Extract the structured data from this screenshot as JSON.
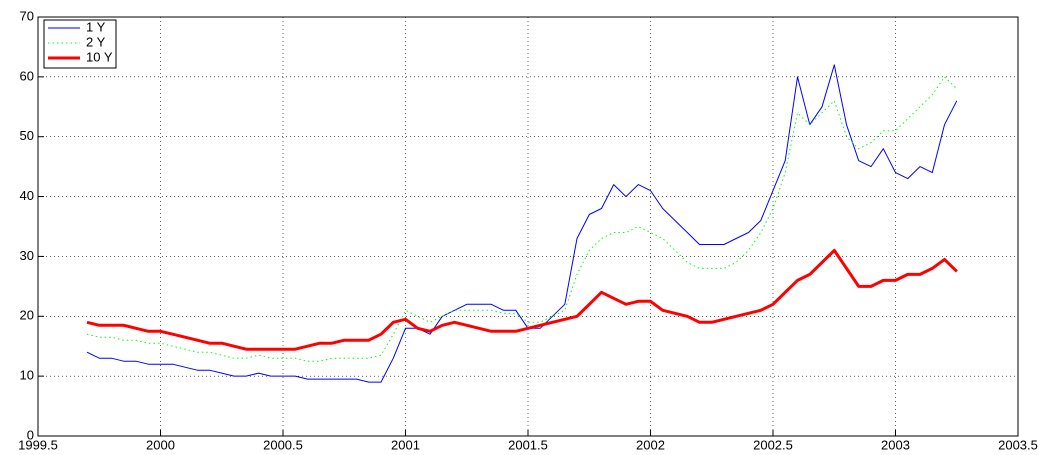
{
  "chart_data": {
    "type": "line",
    "x": [
      1999.7,
      1999.75,
      1999.8,
      1999.85,
      1999.9,
      1999.95,
      2000,
      2000.05,
      2000.1,
      2000.15,
      2000.2,
      2000.25,
      2000.3,
      2000.35,
      2000.4,
      2000.45,
      2000.5,
      2000.55,
      2000.6,
      2000.65,
      2000.7,
      2000.75,
      2000.8,
      2000.85,
      2000.9,
      2000.95,
      2001,
      2001.05,
      2001.1,
      2001.15,
      2001.2,
      2001.25,
      2001.3,
      2001.35,
      2001.4,
      2001.45,
      2001.5,
      2001.55,
      2001.6,
      2001.65,
      2001.7,
      2001.75,
      2001.8,
      2001.85,
      2001.9,
      2001.95,
      2002,
      2002.05,
      2002.1,
      2002.15,
      2002.2,
      2002.25,
      2002.3,
      2002.35,
      2002.4,
      2002.45,
      2002.5,
      2002.55,
      2002.6,
      2002.65,
      2002.7,
      2002.75,
      2002.8,
      2002.85,
      2002.9,
      2002.95,
      2003,
      2003.05,
      2003.1,
      2003.15,
      2003.2,
      2003.25
    ],
    "series": [
      {
        "name": "1 Y",
        "color": "#0000ff",
        "linestyle": "solid",
        "linewidth": 1,
        "values": [
          14,
          13,
          13,
          12.5,
          12.5,
          12,
          12,
          12,
          11.5,
          11,
          11,
          10.5,
          10,
          10,
          10.5,
          10,
          10,
          10,
          9.5,
          9.5,
          9.5,
          9.5,
          9.5,
          9,
          9,
          13,
          18,
          18,
          17,
          20,
          21,
          22,
          22,
          22,
          21,
          21,
          18,
          18,
          20,
          22,
          33,
          37,
          38,
          42,
          40,
          42,
          41,
          38,
          36,
          34,
          32,
          32,
          32,
          33,
          34,
          36,
          41,
          46,
          60,
          52,
          55,
          62,
          52,
          46,
          45,
          48,
          44,
          43,
          45,
          44,
          52,
          56
        ]
      },
      {
        "name": "2 Y",
        "color": "#00ff00",
        "linestyle": "dotted",
        "linewidth": 1,
        "values": [
          17,
          16.5,
          16.5,
          16,
          16,
          15.5,
          15.5,
          15,
          14.5,
          14,
          14,
          13.5,
          13,
          13,
          13.5,
          13,
          13,
          13,
          12.5,
          12.5,
          13,
          13,
          13,
          13,
          13.5,
          17,
          21,
          20,
          19,
          20,
          21,
          21,
          21,
          21,
          20.5,
          20.5,
          19,
          19,
          20,
          21,
          27,
          31,
          33,
          34,
          34,
          35,
          34,
          33,
          31,
          29,
          28,
          28,
          28,
          29,
          31,
          34,
          38,
          44,
          54,
          52,
          54,
          56,
          50,
          48,
          49,
          51,
          51,
          53,
          55,
          57,
          60,
          58
        ]
      },
      {
        "name": "10 Y",
        "color": "#ff0000",
        "linestyle": "solid",
        "linewidth": 3,
        "values": [
          19,
          18.5,
          18.5,
          18.5,
          18,
          17.5,
          17.5,
          17,
          16.5,
          16,
          15.5,
          15.5,
          15,
          14.5,
          14.5,
          14.5,
          14.5,
          14.5,
          15,
          15.5,
          15.5,
          16,
          16,
          16,
          17,
          19,
          19.5,
          18,
          17.5,
          18.5,
          19,
          18.5,
          18,
          17.5,
          17.5,
          17.5,
          18,
          18.5,
          19,
          19.5,
          20,
          22,
          24,
          23,
          22,
          22.5,
          22.5,
          21,
          20.5,
          20,
          19,
          19,
          19.5,
          20,
          20.5,
          21,
          22,
          24,
          26,
          27,
          29,
          31,
          28,
          25,
          25,
          26,
          26,
          27,
          27,
          28,
          29.5,
          27.5
        ]
      }
    ],
    "xlim": [
      1999.5,
      2003.5
    ],
    "xticks": [
      1999.5,
      2000,
      2000.5,
      2001,
      2001.5,
      2002,
      2002.5,
      2003,
      2003.5
    ],
    "ylim": [
      0,
      70
    ],
    "yticks": [
      0,
      10,
      20,
      30,
      40,
      50,
      60,
      70
    ],
    "grid": true,
    "legend": "upper left"
  }
}
